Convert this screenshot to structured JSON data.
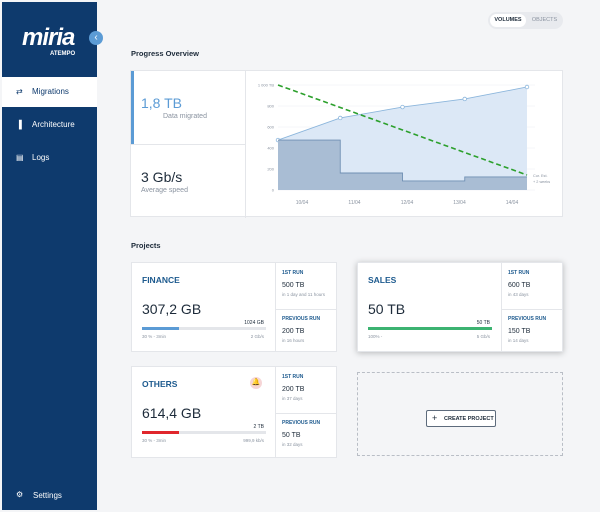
{
  "sidebar": {
    "logo": "miria",
    "logo_sub": "ATEMPO",
    "nav": [
      {
        "label": "Migrations",
        "active": true
      },
      {
        "label": "Architecture",
        "active": false
      },
      {
        "label": "Logs",
        "active": false
      }
    ],
    "settings": "Settings"
  },
  "toggle": [
    "VOLUMES",
    "OBJECTS"
  ],
  "overview": {
    "title": "Progress Overview",
    "migrated": {
      "value": "1,8 TB",
      "label": "Data migrated"
    },
    "speed": {
      "value": "3 Gb/s",
      "label": "Average speed"
    }
  },
  "chart_data": {
    "type": "line",
    "categories": [
      "10/04",
      "11/04",
      "12/04",
      "13/04",
      "14/04"
    ],
    "series": [
      {
        "style": "area",
        "color": "#8cb6dc",
        "fill": "#dce8f6",
        "values": [
          476,
          686,
          790,
          867,
          981
        ]
      },
      {
        "style": "step",
        "color": "#6f8fb3",
        "fill": "#a9bdd4",
        "values": [
          476,
          162,
          86,
          124,
          124
        ]
      },
      {
        "style": "dashed",
        "color": "#2ca02c",
        "values": [
          1000,
          786,
          572,
          357,
          143
        ]
      }
    ],
    "ylim": [
      0,
      1000
    ],
    "yticks": [
      0,
      200,
      400,
      600,
      800,
      {
        "value": 1000,
        "label": "1 000 TB"
      }
    ],
    "grid": true,
    "annotation": [
      "Cur. Est.",
      "+ 2 weeks"
    ]
  },
  "projects": {
    "title": "Projects",
    "create": "CREATE PROJECT",
    "items": [
      {
        "name": "FINANCE",
        "size": "307,2 GB",
        "target": "1024 GB",
        "progress": 30,
        "color": "#5b9bd5",
        "status": "30 % - 3min",
        "rate": "2 Gb/s",
        "alert": false,
        "runs": [
          {
            "label": "1ST RUN",
            "size": "500 TB",
            "detail": "in 1 day and 11 hours"
          },
          {
            "label": "PREVIOUS RUN",
            "size": "200 TB",
            "detail": "in 16 hours"
          }
        ]
      },
      {
        "name": "SALES",
        "size": "50 TB",
        "target": "50 TB",
        "progress": 100,
        "color": "#3cb371",
        "status": "100% -",
        "rate": "5 Gb/s",
        "alert": false,
        "runs": [
          {
            "label": "1ST RUN",
            "size": "600 TB",
            "detail": "in 43 days"
          },
          {
            "label": "PREVIOUS RUN",
            "size": "150 TB",
            "detail": "in 14 days"
          }
        ]
      },
      {
        "name": "OTHERS",
        "size": "614,4 GB",
        "target": "2 TB",
        "progress": 30,
        "color": "#e0262c",
        "status": "30 % - 3min",
        "rate": "999,9 kb/s",
        "alert": true,
        "runs": [
          {
            "label": "1ST RUN",
            "size": "200 TB",
            "detail": "in 37 days"
          },
          {
            "label": "PREVIOUS RUN",
            "size": "50 TB",
            "detail": "in 32 days"
          }
        ]
      }
    ]
  }
}
